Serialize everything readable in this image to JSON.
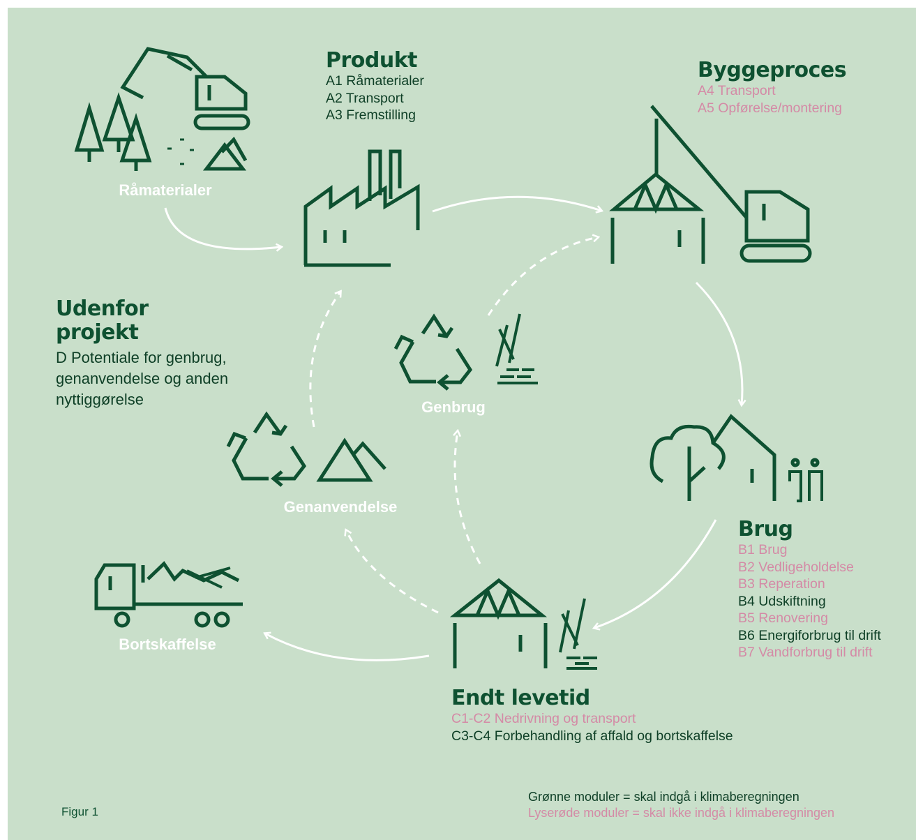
{
  "stages": [
    {
      "title": "Produkt",
      "modules": [
        {
          "text": "A1 Råmaterialer",
          "included": true
        },
        {
          "text": "A2 Transport",
          "included": true
        },
        {
          "text": "A3 Fremstilling",
          "included": true
        }
      ]
    },
    {
      "title": "Byggeproces",
      "modules": [
        {
          "text": "A4 Transport",
          "included": false
        },
        {
          "text": "A5 Opførelse/montering",
          "included": false
        }
      ]
    },
    {
      "title": "Brug",
      "modules": [
        {
          "text": "B1 Brug",
          "included": false
        },
        {
          "text": "B2 Vedligeholdelse",
          "included": false
        },
        {
          "text": "B3 Reperation",
          "included": false
        },
        {
          "text": "B4 Udskiftning",
          "included": true
        },
        {
          "text": "B5 Renovering",
          "included": false
        },
        {
          "text": "B6 Energiforbrug til drift",
          "included": true
        },
        {
          "text": "B7 Vandforbrug til drift",
          "included": false
        }
      ]
    },
    {
      "title": "Endt levetid",
      "modules": [
        {
          "text": "C1-C2 Nedrivning og transport",
          "included": false
        },
        {
          "text": "C3-C4 Forbehandling af affald og bortskaffelse",
          "included": true
        }
      ]
    },
    {
      "title": "Udenfor projekt",
      "modules": [
        {
          "text": "D Potentiale for genbrug, genanvendelse og anden nyttiggørelse",
          "included": true
        }
      ]
    }
  ],
  "icon_labels": [
    "Råmaterialer",
    "Genbrug",
    "Genanvendelse",
    "Bortskaffelse"
  ],
  "legend": [
    {
      "text": "Grønne moduler = skal indgå i klimaberegningen",
      "included": true
    },
    {
      "text": "Lyserøde moduler = skal ikke indgå i klimaberegningen",
      "included": false
    }
  ],
  "figure_label": "Figur 1"
}
